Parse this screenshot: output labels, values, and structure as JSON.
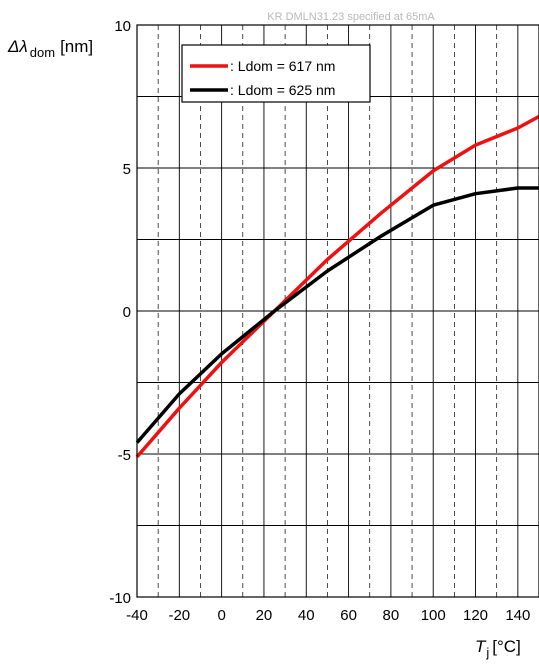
{
  "chart_data": {
    "type": "line",
    "title": "KR DMLN31.23 specified at 65mA",
    "ylabel": {
      "symbol": "Δλ",
      "subscript": "dom",
      "unit": "[nm]"
    },
    "xlabel": {
      "symbol": "T",
      "subscript": "j",
      "unit": "[°C]"
    },
    "xlim": [
      -40,
      150
    ],
    "ylim": [
      -10,
      10
    ],
    "xticks": [
      -40,
      -20,
      0,
      20,
      40,
      60,
      80,
      100,
      120,
      140
    ],
    "xtick_labels": [
      "-40",
      "-20",
      "0",
      "20",
      "40",
      "60",
      "80",
      "100",
      "120",
      "140"
    ],
    "yticks": [
      -10,
      -5,
      0,
      5,
      10
    ],
    "ytick_labels": [
      "-10",
      "-5",
      "0",
      "5",
      "10"
    ],
    "grid": true,
    "legend_position": "top-left",
    "series": [
      {
        "name": ": Ldom = 617 nm",
        "color": "#ee1111",
        "x": [
          -40,
          -20,
          0,
          25,
          50,
          75,
          100,
          120,
          140,
          150
        ],
        "y": [
          -5.1,
          -3.4,
          -1.8,
          0.0,
          1.8,
          3.4,
          4.9,
          5.8,
          6.4,
          6.8
        ]
      },
      {
        "name": ": Ldom = 625 nm",
        "color": "#000000",
        "x": [
          -40,
          -20,
          0,
          25,
          50,
          75,
          100,
          120,
          140,
          150
        ],
        "y": [
          -4.6,
          -2.9,
          -1.5,
          0.0,
          1.4,
          2.6,
          3.7,
          4.1,
          4.3,
          4.3
        ]
      }
    ]
  }
}
